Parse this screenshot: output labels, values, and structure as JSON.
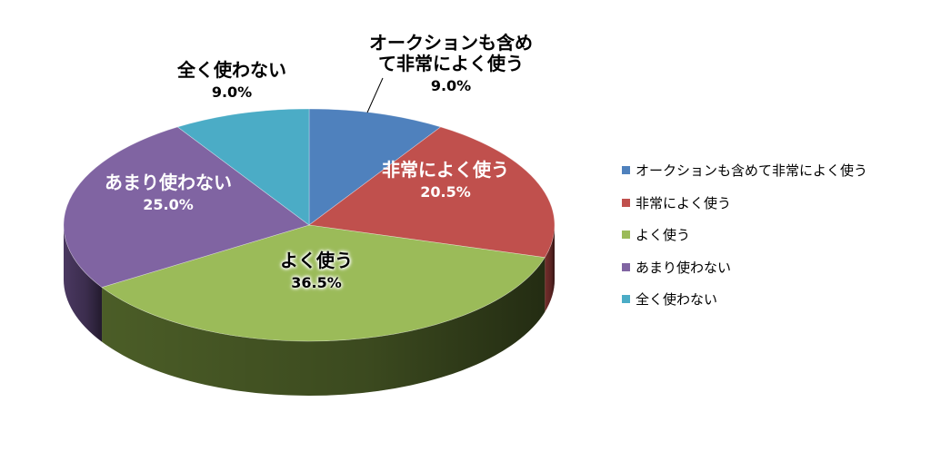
{
  "chart_data": {
    "type": "pie",
    "style": "3d",
    "categories": [
      "オークションも含めて非常によく使う",
      "非常によく使う",
      "よく使う",
      "あまり使わない",
      "全く使わない"
    ],
    "values": [
      9.0,
      20.5,
      36.5,
      25.0,
      9.0
    ],
    "value_labels": [
      "9.0%",
      "20.5%",
      "36.5%",
      "25.0%",
      "9.0%"
    ],
    "label_texts": [
      [
        "オークションも含め",
        "て非常によく使う"
      ],
      [
        "非常によく使う"
      ],
      [
        "よく使う"
      ],
      [
        "あまり使わない"
      ],
      [
        "全く使わない"
      ]
    ],
    "colors": [
      "#4F81BD",
      "#C0504D",
      "#9BBB59",
      "#8064A2",
      "#4BACC6"
    ],
    "side_colors": [
      "#2E4D75",
      "#7A302E",
      "#4F6229",
      "#4E3B66",
      "#2C6F80"
    ],
    "legend_position": "right"
  }
}
